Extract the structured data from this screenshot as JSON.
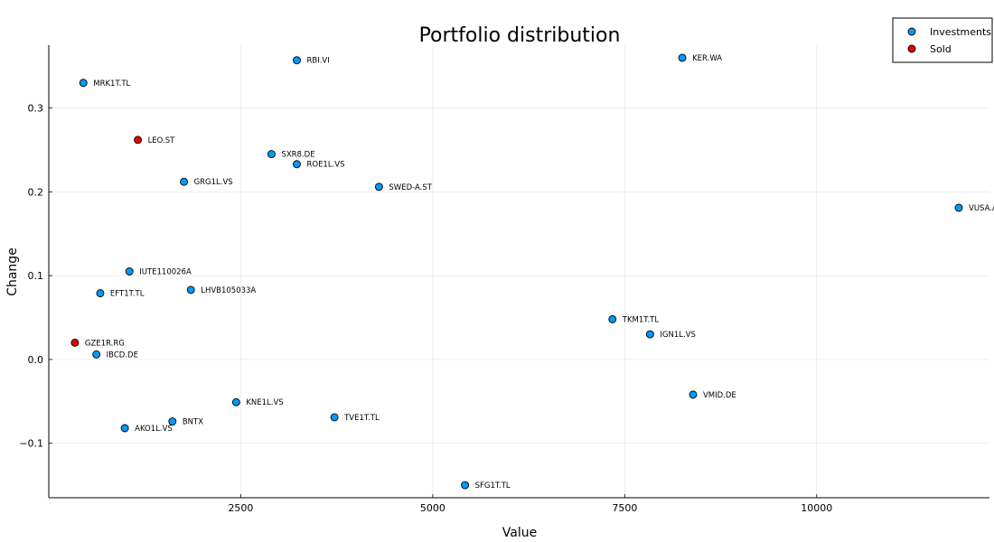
{
  "chart_data": {
    "type": "scatter",
    "title": "Portfolio distribution",
    "xlabel": "Value",
    "ylabel": "Change",
    "xlim": [
      0,
      12250
    ],
    "ylim": [
      -0.165,
      0.375
    ],
    "xticks": [
      2500,
      5000,
      7500,
      10000
    ],
    "xtick_labels": [
      "2500",
      "5000",
      "7500",
      "10000"
    ],
    "yticks": [
      -0.1,
      0.0,
      0.1,
      0.2,
      0.3
    ],
    "ytick_labels": [
      "−0.1",
      "0.0",
      "0.1",
      "0.2",
      "0.3"
    ],
    "grid": true,
    "legend_position": "top-right",
    "series": [
      {
        "name": "Investments",
        "color": "#009af9",
        "points": [
          {
            "label": "MRK1T.TL",
            "x": 450,
            "y": 0.33
          },
          {
            "label": "RBI.VI",
            "x": 3230,
            "y": 0.357
          },
          {
            "label": "KER.WA",
            "x": 8250,
            "y": 0.36
          },
          {
            "label": "SXR8.DE",
            "x": 2900,
            "y": 0.245
          },
          {
            "label": "ROE1L.VS",
            "x": 3230,
            "y": 0.233
          },
          {
            "label": "GRG1L.VS",
            "x": 1760,
            "y": 0.212
          },
          {
            "label": "SWED-A.ST",
            "x": 4300,
            "y": 0.206
          },
          {
            "label": "VUSA.AS",
            "x": 11850,
            "y": 0.181
          },
          {
            "label": "IUTE110026A",
            "x": 1050,
            "y": 0.105
          },
          {
            "label": "LHVB105033A",
            "x": 1850,
            "y": 0.083
          },
          {
            "label": "EFT1T.TL",
            "x": 670,
            "y": 0.079
          },
          {
            "label": "TKM1T.TL",
            "x": 7340,
            "y": 0.048
          },
          {
            "label": "IGN1L.VS",
            "x": 7830,
            "y": 0.03
          },
          {
            "label": "IBCD.DE",
            "x": 620,
            "y": 0.006
          },
          {
            "label": "VMID.DE",
            "x": 8390,
            "y": -0.042
          },
          {
            "label": "KNE1L.VS",
            "x": 2440,
            "y": -0.051
          },
          {
            "label": "TVE1T.TL",
            "x": 3720,
            "y": -0.069
          },
          {
            "label": "BNTX",
            "x": 1610,
            "y": -0.074
          },
          {
            "label": "AKO1L.VS",
            "x": 990,
            "y": -0.082
          },
          {
            "label": "SFG1T.TL",
            "x": 5420,
            "y": -0.15
          }
        ]
      },
      {
        "name": "Sold",
        "color": "#e20000",
        "points": [
          {
            "label": "LEO.ST",
            "x": 1160,
            "y": 0.262
          },
          {
            "label": "GZE1R.RG",
            "x": 340,
            "y": 0.02
          }
        ]
      }
    ]
  }
}
